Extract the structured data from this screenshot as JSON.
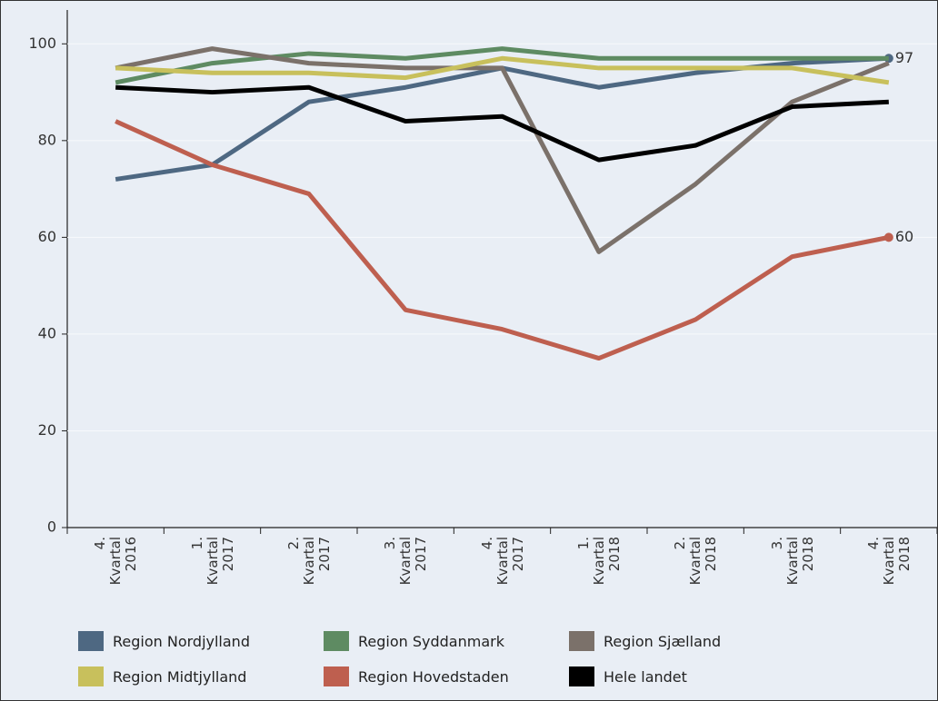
{
  "chart_data": {
    "type": "line",
    "categories": [
      "4. Kvartal 2016",
      "1. Kvartal 2017",
      "2. Kvartal 2017",
      "3. Kvartal 2017",
      "4. Kvartal 2017",
      "1. Kvartal 2018",
      "2. Kvartal 2018",
      "3. Kvartal 2018",
      "4. Kvartal 2018"
    ],
    "series": [
      {
        "name": "Region Nordjylland",
        "color": "#4e6882",
        "values": [
          72,
          75,
          88,
          91,
          95,
          91,
          94,
          96,
          97
        ],
        "end_label": true
      },
      {
        "name": "Region Syddanmark",
        "color": "#5e8b62",
        "values": [
          92,
          96,
          98,
          97,
          99,
          97,
          97,
          97,
          97
        ]
      },
      {
        "name": "Region Sjælland",
        "color": "#7b716a",
        "values": [
          95,
          99,
          96,
          95,
          95,
          57,
          71,
          88,
          96
        ]
      },
      {
        "name": "Region Midtjylland",
        "color": "#c8c05c",
        "values": [
          95,
          94,
          94,
          93,
          97,
          95,
          95,
          95,
          92
        ]
      },
      {
        "name": "Region Hovedstaden",
        "color": "#be5f4f",
        "values": [
          84,
          75,
          69,
          45,
          41,
          35,
          43,
          56,
          60
        ],
        "end_label": true
      },
      {
        "name": "Hele landet",
        "color": "#000000",
        "values": [
          91,
          90,
          91,
          84,
          85,
          76,
          79,
          87,
          88
        ]
      }
    ],
    "ylim": [
      0,
      107
    ],
    "yticks": [
      0,
      20,
      40,
      60,
      80,
      100
    ],
    "grid": true
  }
}
